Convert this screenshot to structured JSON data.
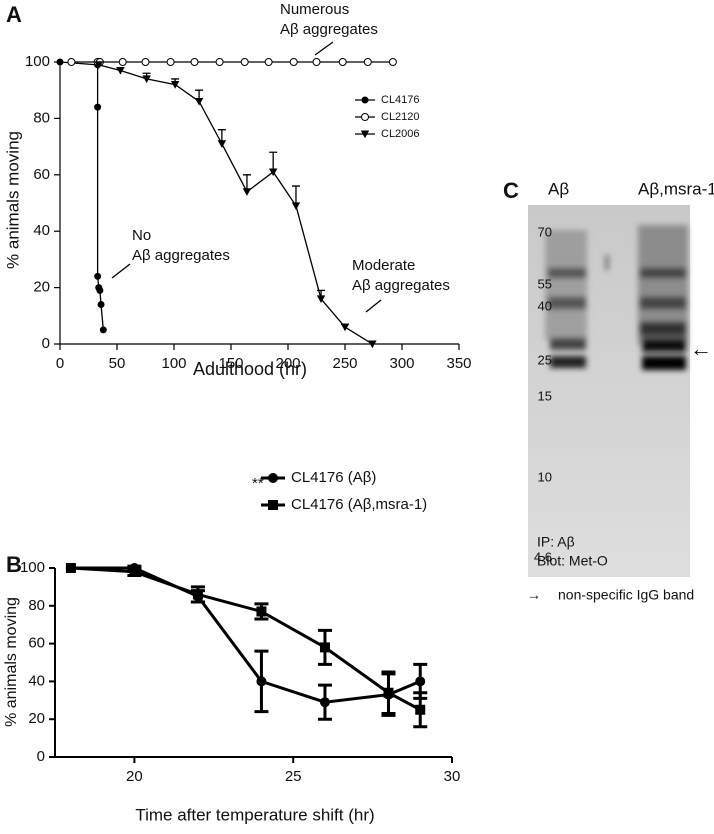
{
  "panel_labels": [
    "A",
    "B",
    "C"
  ],
  "chart_data": [
    {
      "type": "line",
      "xlabel": "Adulthood (hr)",
      "ylabel": "% animals moving",
      "xlim": [
        0,
        350
      ],
      "xticks": [
        0,
        50,
        100,
        150,
        200,
        250,
        300,
        350
      ],
      "ylim": [
        0,
        100
      ],
      "yticks": [
        0,
        20,
        40,
        60,
        80,
        100
      ],
      "series": [
        {
          "name": "CL4176",
          "color": "#000000",
          "marker": "circle",
          "x": [
            0,
            33,
            33,
            33,
            34,
            35,
            36,
            38
          ],
          "values": [
            100,
            99,
            84,
            24,
            20,
            19,
            14,
            5
          ]
        },
        {
          "name": "CL2120",
          "color": "#000000",
          "marker": "open-circle",
          "x": [
            10,
            33,
            35,
            55,
            75,
            97,
            118,
            140,
            162,
            183,
            205,
            225,
            248,
            270,
            292
          ],
          "values": [
            100,
            100,
            100,
            100,
            100,
            100,
            100,
            100,
            100,
            100,
            100,
            100,
            100,
            100,
            100
          ]
        },
        {
          "name": "CL2006",
          "color": "#000000",
          "marker": "triangle",
          "x": [
            34,
            53,
            76,
            101,
            122,
            142,
            164,
            187,
            207,
            229,
            250,
            274
          ],
          "values": [
            99,
            97,
            94,
            92,
            86,
            71,
            54,
            61,
            49,
            16,
            6,
            0
          ],
          "errors": [
            1,
            1,
            2,
            2,
            4,
            5,
            6,
            7,
            7,
            3,
            1,
            0
          ]
        }
      ],
      "annotations": [
        [
          "Numerous",
          "Aβ aggregates"
        ],
        [
          "No",
          "Aβ aggregates"
        ],
        [
          "Moderate",
          "Aβ aggregates"
        ]
      ]
    },
    {
      "type": "line",
      "xlabel": "Time after temperature shift (hr)",
      "ylabel": "% animals moving",
      "xlim": [
        17.5,
        30
      ],
      "xticks": [
        20,
        25,
        30
      ],
      "ylim": [
        0,
        100
      ],
      "yticks": [
        0,
        20,
        40,
        60,
        80,
        100
      ],
      "series": [
        {
          "name": "CL4176 (Aβ)",
          "color": "#000000",
          "marker": "circle",
          "x": [
            18,
            20,
            22,
            24,
            26,
            28,
            29
          ],
          "values": [
            100,
            100,
            85,
            40,
            29,
            33,
            40
          ],
          "errors": [
            0,
            1,
            3,
            16,
            9,
            11,
            9
          ]
        },
        {
          "name": "CL4176 (Aβ,msra-1)",
          "color": "#000000",
          "marker": "square",
          "x": [
            18,
            20,
            22,
            24,
            26,
            28,
            29
          ],
          "values": [
            100,
            98,
            86,
            77,
            58,
            34,
            25
          ],
          "errors": [
            0,
            2,
            4,
            4,
            9,
            11,
            9
          ]
        }
      ],
      "annotations": [
        [
          "**"
        ]
      ]
    }
  ],
  "blot": {
    "lanes": [
      "Aβ",
      "Aβ,msra-1"
    ],
    "markers": [
      "70",
      "55",
      "40",
      "25",
      "15",
      "10",
      "4.6"
    ],
    "notes": [
      "IP: Aβ",
      "Blot: Met-O"
    ],
    "arrow": "←",
    "legend_arrow": "→",
    "legend_text": "non-specific IgG band"
  }
}
